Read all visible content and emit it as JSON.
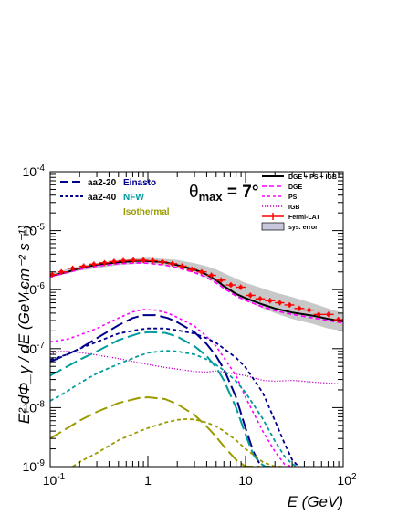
{
  "chart_data": {
    "type": "line",
    "title": "",
    "annotation": {
      "symbol": "θ",
      "subscript": "max",
      "value": " = 7°"
    },
    "xlabel": "E (GeV)",
    "ylabel": "E² dΦ_γ / dE (GeV cm⁻² s⁻¹)",
    "xscale": "log",
    "yscale": "log",
    "xlim": [
      0.1,
      100
    ],
    "ylim": [
      1e-09,
      0.0001
    ],
    "grid": false,
    "x_ticks": [
      {
        "value": 0.1,
        "base": "10",
        "exp": "-1"
      },
      {
        "value": 1,
        "base": "1",
        "exp": ""
      },
      {
        "value": 10,
        "base": "10",
        "exp": ""
      },
      {
        "value": 100,
        "base": "10",
        "exp": "2"
      }
    ],
    "y_ticks": [
      {
        "value": 1e-09,
        "base": "10",
        "exp": "-9"
      },
      {
        "value": 1e-08,
        "base": "10",
        "exp": "-8"
      },
      {
        "value": 1e-07,
        "base": "10",
        "exp": "-7"
      },
      {
        "value": 1e-06,
        "base": "10",
        "exp": "-6"
      },
      {
        "value": 1e-05,
        "base": "10",
        "exp": "-5"
      },
      {
        "value": 0.0001,
        "base": "10",
        "exp": "-4"
      }
    ],
    "legend_left": {
      "placement": "top-left",
      "styles": [
        {
          "label": "aa2-20",
          "dash": "long"
        },
        {
          "label": "aa2-40",
          "dash": "short"
        }
      ],
      "profiles": [
        {
          "label": "Einasto",
          "color": "#00008b"
        },
        {
          "label": "NFW",
          "color": "#009b9b"
        },
        {
          "label": "Isothermal",
          "color": "#9b9b00"
        }
      ]
    },
    "legend_right": {
      "placement": "top-right",
      "entries": [
        {
          "label": "DGE + PS + IGB",
          "style": "solid",
          "color": "#000000"
        },
        {
          "label": "DGE",
          "style": "dashed",
          "color": "#ff00ff"
        },
        {
          "label": "PS",
          "style": "dotted",
          "color": "#ff00ff"
        },
        {
          "label": "IGB",
          "style": "fine-dotted",
          "color": "#c000c0"
        },
        {
          "label": "Fermi-LAT",
          "style": "errorbar",
          "color": "#ff0000"
        },
        {
          "label": "sys. error",
          "style": "box",
          "color": "#c8c8dc"
        }
      ]
    },
    "series": [
      {
        "style": "solid",
        "color": "#000000",
        "x": [
          0.1,
          0.15,
          0.2,
          0.3,
          0.5,
          0.8,
          1.0,
          1.5,
          2,
          3,
          4,
          5,
          6,
          8,
          10,
          15,
          20,
          30,
          50,
          70,
          100
        ],
        "y": [
          1.7e-06,
          2e-06,
          2.3e-06,
          2.65e-06,
          2.9e-06,
          3.1e-06,
          3.05e-06,
          2.9e-06,
          2.6e-06,
          2.2e-06,
          1.8e-06,
          1.45e-06,
          1.15e-06,
          8.5e-07,
          7.2e-07,
          5.6e-07,
          4.8e-07,
          4.1e-07,
          3.6e-07,
          3.2e-07,
          2.9e-07
        ]
      },
      {
        "style": "dashed",
        "color": "#ff00ff",
        "x": [
          0.1,
          0.15,
          0.2,
          0.3,
          0.5,
          0.8,
          1.0,
          1.5,
          2,
          3,
          4,
          5,
          6,
          8,
          10,
          15,
          20,
          30,
          50,
          70,
          100
        ],
        "y": [
          1.65e-06,
          1.95e-06,
          2.2e-06,
          2.5e-06,
          2.75e-06,
          2.85e-06,
          2.8e-06,
          2.6e-06,
          2.35e-06,
          1.95e-06,
          1.6e-06,
          1.3e-06,
          1.05e-06,
          7.8e-07,
          6.6e-07,
          5.1e-07,
          4.4e-07,
          3.8e-07,
          3.3e-07,
          3e-07,
          2.7e-07
        ]
      },
      {
        "style": "dotted",
        "color": "#ff00ff",
        "x": [
          0.1,
          0.15,
          0.2,
          0.3,
          0.5,
          0.7,
          0.9,
          1.2,
          1.6,
          2,
          3,
          4,
          5,
          6,
          8,
          10,
          15,
          20,
          25,
          30
        ],
        "y": [
          1.3e-07,
          1.45e-07,
          1.7e-07,
          2.2e-07,
          3.3e-07,
          4.2e-07,
          4.6e-07,
          4.5e-07,
          4e-07,
          3.4e-07,
          2.4e-07,
          1.6e-07,
          1.1e-07,
          7e-08,
          3.5e-08,
          1.5e-08,
          4e-09,
          1.8e-09,
          1.1e-09,
          1e-09
        ]
      },
      {
        "style": "fine-dotted",
        "color": "#c000c0",
        "x": [
          0.1,
          0.12,
          0.15,
          0.2,
          0.3,
          0.5,
          0.8,
          1,
          1.5,
          2,
          3,
          4,
          5,
          6,
          8,
          10,
          15,
          20,
          30,
          50,
          100
        ],
        "y": [
          8e-08,
          9e-08,
          9e-08,
          8.6e-08,
          7.8e-08,
          6.8e-08,
          5.8e-08,
          5.4e-08,
          4.8e-08,
          4.5e-08,
          4.1e-08,
          4e-08,
          4.2e-08,
          4e-08,
          3.7e-08,
          3.5e-08,
          2.9e-08,
          2.8e-08,
          2.9e-08,
          2.7e-08,
          2.5e-08
        ]
      },
      {
        "style": "long-dash",
        "color": "#00008b",
        "x": [
          0.1,
          0.15,
          0.2,
          0.3,
          0.5,
          0.7,
          0.9,
          1.2,
          1.6,
          2,
          3,
          4,
          5,
          6,
          8,
          10,
          12,
          14,
          16
        ],
        "y": [
          6e-08,
          8e-08,
          1e-07,
          1.5e-07,
          2.5e-07,
          3.3e-07,
          3.7e-07,
          3.7e-07,
          3.3e-07,
          2.8e-07,
          1.9e-07,
          1.2e-07,
          7.5e-08,
          4.5e-08,
          1.5e-08,
          4.5e-09,
          1.8e-09,
          1.1e-09,
          1e-09
        ]
      },
      {
        "style": "short-dash",
        "color": "#00008b",
        "x": [
          0.1,
          0.15,
          0.2,
          0.3,
          0.5,
          0.8,
          1.0,
          1.5,
          2,
          3,
          4,
          5,
          6,
          8,
          10,
          15,
          20,
          25,
          30,
          35
        ],
        "y": [
          6.5e-08,
          8e-08,
          1e-07,
          1.3e-07,
          1.8e-07,
          2.1e-07,
          2.2e-07,
          2.2e-07,
          2.05e-07,
          1.8e-07,
          1.5e-07,
          1.25e-07,
          1e-07,
          7e-08,
          4.8e-08,
          1.8e-08,
          6e-09,
          2.5e-09,
          1.3e-09,
          1e-09
        ]
      },
      {
        "style": "long-dash",
        "color": "#009b9b",
        "x": [
          0.1,
          0.15,
          0.2,
          0.3,
          0.5,
          0.8,
          1,
          1.5,
          2,
          3,
          4,
          5,
          6,
          8,
          10,
          12,
          14,
          16,
          18
        ],
        "y": [
          3.5e-08,
          5e-08,
          6.5e-08,
          9e-08,
          1.4e-07,
          1.8e-07,
          1.9e-07,
          1.85e-07,
          1.6e-07,
          1.1e-07,
          7.5e-08,
          4.8e-08,
          2.9e-08,
          1e-08,
          3.5e-09,
          1.6e-09,
          1.15e-09,
          1e-09,
          1e-09
        ]
      },
      {
        "style": "short-dash",
        "color": "#009b9b",
        "x": [
          0.1,
          0.15,
          0.2,
          0.3,
          0.5,
          0.8,
          1,
          1.5,
          2,
          3,
          4,
          5,
          6,
          8,
          10,
          15,
          20,
          25,
          30,
          35
        ],
        "y": [
          1.3e-08,
          1.9e-08,
          2.6e-08,
          3.8e-08,
          5.5e-08,
          7.5e-08,
          8.5e-08,
          9.2e-08,
          9e-08,
          8e-08,
          6.6e-08,
          5.3e-08,
          4.3e-08,
          2.8e-08,
          1.8e-08,
          6.5e-09,
          2.7e-09,
          1.5e-09,
          1.1e-09,
          1e-09
        ]
      },
      {
        "style": "long-dash",
        "color": "#9b9b00",
        "x": [
          0.1,
          0.15,
          0.2,
          0.3,
          0.5,
          0.8,
          1,
          1.5,
          2,
          3,
          4,
          5,
          6,
          8,
          10,
          12,
          14
        ],
        "y": [
          3e-09,
          4.5e-09,
          6e-09,
          8.5e-09,
          1.2e-08,
          1.45e-08,
          1.5e-08,
          1.4e-08,
          1.15e-08,
          7.5e-09,
          4.8e-09,
          3.2e-09,
          2.2e-09,
          1.3e-09,
          1e-09,
          1e-09,
          1e-09
        ]
      },
      {
        "style": "short-dash",
        "color": "#9b9b00",
        "x": [
          0.17,
          0.2,
          0.3,
          0.5,
          0.8,
          1,
          1.5,
          2,
          2.5,
          3,
          4,
          5,
          6,
          8,
          10,
          15,
          20,
          25
        ],
        "y": [
          1e-09,
          1.2e-09,
          1.7e-09,
          2.8e-09,
          3.9e-09,
          4.5e-09,
          5.6e-09,
          6.2e-09,
          6.4e-09,
          6.3e-09,
          5.6e-09,
          4.8e-09,
          4e-09,
          2.8e-09,
          2e-09,
          1.2e-09,
          1e-09,
          1e-09
        ]
      }
    ],
    "sys_error_band": {
      "color": "#c8c8c8",
      "x": [
        0.1,
        0.2,
        0.5,
        1,
        2,
        3,
        4,
        5,
        7,
        10,
        15,
        20,
        30,
        50,
        70,
        100
      ],
      "low": [
        1.6e-06,
        2.1e-06,
        2.6e-06,
        2.8e-06,
        2.4e-06,
        2e-06,
        1.6e-06,
        1.3e-06,
        9e-07,
        6.5e-07,
        4.8e-07,
        4e-07,
        3.2e-07,
        2.6e-07,
        2.2e-07,
        2e-07
      ],
      "high": [
        1.9e-06,
        2.5e-06,
        3.2e-06,
        3.5e-06,
        3.2e-06,
        2.8e-06,
        2.5e-06,
        2.2e-06,
        1.7e-06,
        1.3e-06,
        1.05e-06,
        9e-07,
        7.5e-07,
        5.8e-07,
        4.8e-07,
        4e-07
      ]
    },
    "fermi_lat": {
      "color": "#ff0000",
      "points": [
        {
          "x": 0.105,
          "y": 1.8e-06,
          "xlo": 0.1,
          "xhi": 0.12
        },
        {
          "x": 0.13,
          "y": 2e-06,
          "xlo": 0.12,
          "xhi": 0.15
        },
        {
          "x": 0.17,
          "y": 2.3e-06,
          "xlo": 0.15,
          "xhi": 0.2
        },
        {
          "x": 0.22,
          "y": 2.5e-06,
          "xlo": 0.2,
          "xhi": 0.25
        },
        {
          "x": 0.28,
          "y": 2.7e-06,
          "xlo": 0.25,
          "xhi": 0.32
        },
        {
          "x": 0.36,
          "y": 2.85e-06,
          "xlo": 0.32,
          "xhi": 0.4
        },
        {
          "x": 0.45,
          "y": 3e-06,
          "xlo": 0.4,
          "xhi": 0.5
        },
        {
          "x": 0.56,
          "y": 3.1e-06,
          "xlo": 0.5,
          "xhi": 0.63
        },
        {
          "x": 0.71,
          "y": 3.15e-06,
          "xlo": 0.63,
          "xhi": 0.8
        },
        {
          "x": 0.9,
          "y": 3.15e-06,
          "xlo": 0.8,
          "xhi": 1.0
        },
        {
          "x": 1.12,
          "y": 3.1e-06,
          "xlo": 1.0,
          "xhi": 1.26
        },
        {
          "x": 1.41,
          "y": 2.95e-06,
          "xlo": 1.26,
          "xhi": 1.58
        },
        {
          "x": 1.78,
          "y": 2.75e-06,
          "xlo": 1.58,
          "xhi": 2.0
        },
        {
          "x": 2.24,
          "y": 2.5e-06,
          "xlo": 2.0,
          "xhi": 2.5
        },
        {
          "x": 2.82,
          "y": 2.2e-06,
          "xlo": 2.5,
          "xhi": 3.16
        },
        {
          "x": 3.55,
          "y": 2e-06,
          "xlo": 3.16,
          "xhi": 4.0
        },
        {
          "x": 4.47,
          "y": 1.75e-06,
          "xlo": 4.0,
          "xhi": 5.0
        },
        {
          "x": 5.62,
          "y": 1.45e-06,
          "xlo": 5.0,
          "xhi": 6.3
        },
        {
          "x": 7.08,
          "y": 1.2e-06,
          "xlo": 6.3,
          "xhi": 8.0
        },
        {
          "x": 8.91,
          "y": 1.1e-06,
          "xlo": 8.0,
          "xhi": 10.0
        },
        {
          "x": 11.2,
          "y": 8e-07,
          "xlo": 10.0,
          "xhi": 12.6
        },
        {
          "x": 14.1,
          "y": 7e-07,
          "xlo": 12.6,
          "xhi": 15.8
        },
        {
          "x": 17.8,
          "y": 6.5e-07,
          "xlo": 15.8,
          "xhi": 20.0
        },
        {
          "x": 22.4,
          "y": 6e-07,
          "xlo": 20.0,
          "xhi": 25.0
        },
        {
          "x": 28.2,
          "y": 5.5e-07,
          "xlo": 25.0,
          "xhi": 31.6
        },
        {
          "x": 35.5,
          "y": 4.8e-07,
          "xlo": 31.6,
          "xhi": 40.0
        },
        {
          "x": 44.7,
          "y": 4.5e-07,
          "xlo": 40.0,
          "xhi": 50.0
        },
        {
          "x": 56.2,
          "y": 3.8e-07,
          "xlo": 50.0,
          "xhi": 63.0
        },
        {
          "x": 70.8,
          "y": 3.8e-07,
          "xlo": 63.0,
          "xhi": 80.0
        },
        {
          "x": 89.1,
          "y": 3.1e-07,
          "xlo": 80.0,
          "xhi": 100.0
        }
      ]
    }
  }
}
